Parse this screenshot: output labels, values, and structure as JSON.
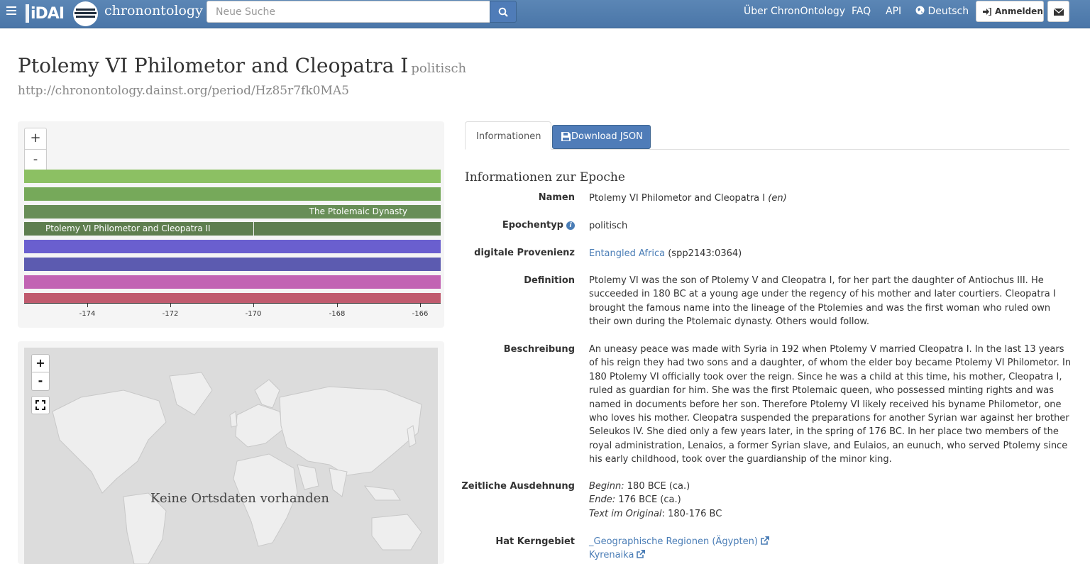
{
  "header": {
    "logo_text": "iDAI",
    "brand": "chronontology",
    "search_placeholder": "Neue Suche",
    "nav": [
      "Über ChronOntology",
      "FAQ",
      "API",
      "Deutsch"
    ],
    "login": "Anmelden"
  },
  "page": {
    "title": "Ptolemy VI Philometor and Cleopatra I",
    "type_tag": "politisch",
    "uri": "http://chronontology.dainst.org/period/Hz85r7fk0MA5"
  },
  "timeline": {
    "zoom_in": "+",
    "zoom_out": "-",
    "bands": [
      {
        "label": "",
        "color": "#8cc063"
      },
      {
        "label": "",
        "color": "#76a95a"
      },
      {
        "label": "The Ptolemaic Dynasty",
        "color": "#688e57"
      },
      {
        "label": "Ptolemy VI Philometor and Cleopatra II",
        "color": "#5e7e4f"
      },
      {
        "label": "",
        "color": "#6a5fcf"
      },
      {
        "label": "",
        "color": "#5c5bb0"
      },
      {
        "label": "",
        "color": "#c263b3"
      },
      {
        "label": "",
        "color": "#c05a6e"
      }
    ],
    "ticks": [
      "-174",
      "-172",
      "-170",
      "-168",
      "-166"
    ]
  },
  "map": {
    "zoom_in": "+",
    "zoom_out": "-",
    "message": "Keine Ortsdaten vorhanden"
  },
  "tabs": {
    "info": "Informationen",
    "download": "Download JSON"
  },
  "info": {
    "heading": "Informationen zur Epoche",
    "names_label": "Namen",
    "names_value": "Ptolemy VI Philometor and Cleopatra I",
    "names_lang": "(en)",
    "type_label": "Epochentyp",
    "type_value": "politisch",
    "prov_label": "digitale Provenienz",
    "prov_link": "Entangled Africa",
    "prov_id": "(spp2143:0364)",
    "def_label": "Definition",
    "def_value": "Ptolemy VI was the son of Ptolemy V and Cleopatra I, for her part the daughter of Antiochus III. He succeeded in 180 BC at a young age under the regency of his mother and later courtiers. Cleopatra I brought the famous name into the lineage of the Ptolemies and was the first woman who ruled own their own during the Ptolemaic dynasty. Others would follow.",
    "desc_label": "Beschreibung",
    "desc_value": "An uneasy peace was made with Syria in 192 when Ptolemy V married Cleopatra I. In the last 13 years of his reign they had two sons and a daughter, of whom the elder boy became Ptolemy VI Philometor. In 180 Ptolemy VI officially took over the reign. Since he was a child at this time, his mother, Cleopatra I, ruled as guardian for him. She was the first Ptolemaic queen, who possessed minting rights and was named in documents before her son. Therefore Ptolemy VI likely received his byname Philometor, one who loves his mother. Cleopatra suspended the preparations for another Syrian war against her brother Seleukos IV. She died only a few years later, in the spring of 176 BC. In her place two members of the royal administration, Lenaios, a former Syrian slave, and Eulaios, an eunuch, who served Ptolemy since his early childhood, took over the guardianship of the minor king.",
    "time_label": "Zeitliche Ausdehnung",
    "begin_label": "Beginn:",
    "begin_value": "180 BCE (ca.)",
    "end_label": "Ende:",
    "end_value": "176 BCE (ca.)",
    "orig_label": "Text im Original",
    "orig_value": "180-176 BC",
    "core_label": "Hat Kerngebiet",
    "core_1": "_Geographische Regionen (Ägypten)",
    "core_2": "Kyrenaika"
  }
}
